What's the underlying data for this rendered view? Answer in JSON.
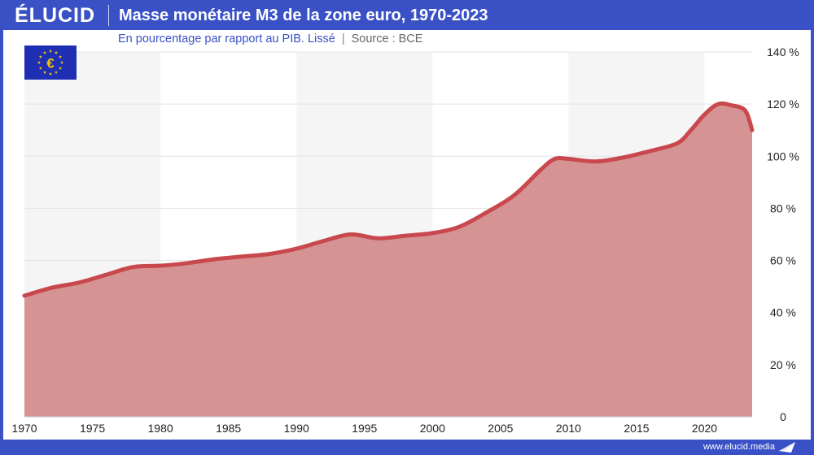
{
  "header": {
    "logo": "ÉLUCID",
    "title": "Masse monétaire M3 de la zone euro, 1970-2023"
  },
  "subtitle": {
    "main": "En pourcentage par rapport au PIB. Lissé",
    "separator": "|",
    "source": "Source : BCE"
  },
  "footer": {
    "url": "www.elucid.media"
  },
  "icons": {
    "flag": "eu-flag-euro-icon",
    "footer": "paper-plane-icon"
  },
  "colors": {
    "brand": "#3a51c6",
    "line": "#c9484d",
    "area": "#d59393",
    "band": "#f5f5f5",
    "flag": "#1f2fb3",
    "flag_stars": "#f6c20e"
  },
  "chart_data": {
    "type": "area",
    "x": [
      1970,
      1972,
      1974,
      1976,
      1978,
      1980,
      1982,
      1984,
      1986,
      1988,
      1990,
      1992,
      1994,
      1996,
      1998,
      2000,
      2002,
      2004,
      2006,
      2008,
      2009,
      2010,
      2012,
      2014,
      2016,
      2018,
      2019,
      2020,
      2021,
      2022,
      2023,
      2023.5
    ],
    "series": [
      {
        "values": [
          46.5,
          49.5,
          51.5,
          54.5,
          57.5,
          58,
          59,
          60.5,
          61.5,
          62.5,
          64.5,
          67.5,
          70,
          68.5,
          69.5,
          70.5,
          73,
          78.5,
          85,
          95,
          99,
          99,
          98,
          99.5,
          102,
          105,
          110,
          116,
          120,
          119.5,
          117.5,
          110
        ]
      }
    ],
    "ylim": [
      0,
      140
    ],
    "xlim": [
      1970,
      2023.5
    ],
    "y_ticks": [
      0,
      20,
      40,
      60,
      80,
      100,
      120,
      140
    ],
    "y_tick_labels": [
      "0",
      "20 %",
      "40 %",
      "60 %",
      "80 %",
      "100 %",
      "120 %",
      "140 %"
    ],
    "x_ticks": [
      1970,
      1975,
      1980,
      1985,
      1990,
      1995,
      2000,
      2005,
      2010,
      2015,
      2020
    ],
    "x_tick_labels": [
      "1970",
      "1975",
      "1980",
      "1985",
      "1990",
      "1995",
      "2000",
      "2005",
      "2010",
      "2015",
      "2020"
    ],
    "decade_bands": [
      [
        1970,
        1980
      ],
      [
        1990,
        2000
      ],
      [
        2010,
        2020
      ]
    ],
    "grid": true,
    "xlabel": "",
    "ylabel": ""
  }
}
